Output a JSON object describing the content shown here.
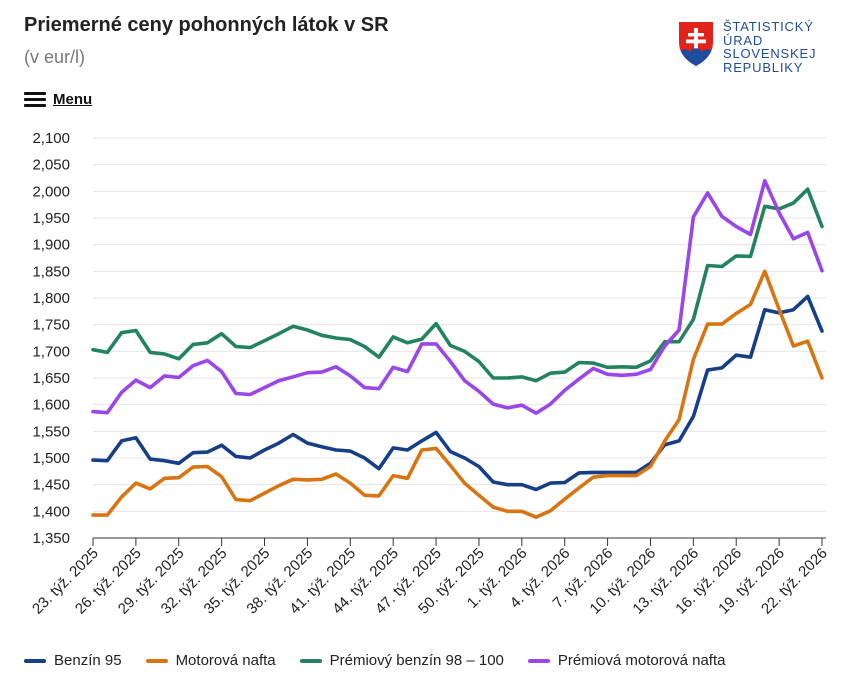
{
  "header": {
    "title": "Priemerné ceny pohonných látok v SR",
    "subtitle": "(v eur/l)",
    "menu_label": "Menu"
  },
  "logo": {
    "lines": [
      "ŠTATISTICKÝ",
      "ÚRAD",
      "SLOVENSKEJ",
      "REPUBLIKY"
    ],
    "colors": {
      "shield": "#e2231a",
      "cross": "#ffffff",
      "hills": "#1d4d9c",
      "text": "#1d4d9c"
    }
  },
  "chart_data": {
    "type": "line",
    "title": "Priemerné ceny pohonných látok v SR",
    "subtitle": "(v eur/l)",
    "xlabel": "",
    "ylabel": "",
    "ylim": [
      1.35,
      2.1
    ],
    "yticks": [
      1.35,
      1.4,
      1.45,
      1.5,
      1.55,
      1.6,
      1.65,
      1.7,
      1.75,
      1.8,
      1.85,
      1.9,
      1.95,
      2.0,
      2.05,
      2.1
    ],
    "ytick_labels": [
      "1,350",
      "1,400",
      "1,450",
      "1,500",
      "1,550",
      "1,600",
      "1,650",
      "1,700",
      "1,750",
      "1,800",
      "1,850",
      "1,900",
      "1,950",
      "2,000",
      "2,050",
      "2,100"
    ],
    "grid": true,
    "legend_position": "bottom",
    "x": [
      "23. týž. 2025",
      "24. týž. 2025",
      "25. týž. 2025",
      "26. týž. 2025",
      "27. týž. 2025",
      "28. týž. 2025",
      "29. týž. 2025",
      "30. týž. 2025",
      "31. týž. 2025",
      "32. týž. 2025",
      "33. týž. 2025",
      "34. týž. 2025",
      "35. týž. 2025",
      "36. týž. 2025",
      "37. týž. 2025",
      "38. týž. 2025",
      "39. týž. 2025",
      "40. týž. 2025",
      "41. týž. 2025",
      "42. týž. 2025",
      "43. týž. 2025",
      "44. týž. 2025",
      "45. týž. 2025",
      "46. týž. 2025",
      "47. týž. 2025",
      "48. týž. 2025",
      "49. týž. 2025",
      "50. týž. 2025",
      "51. týž. 2025",
      "52. týž. 2025",
      "1. týž. 2026",
      "2. týž. 2026",
      "3. týž. 2026",
      "4. týž. 2026",
      "5. týž. 2026",
      "6. týž. 2026",
      "7. týž. 2026",
      "8. týž. 2026",
      "9. týž. 2026",
      "10. týž. 2026",
      "11. týž. 2026",
      "12. týž. 2026",
      "13. týž. 2026",
      "14. týž. 2026",
      "15. týž. 2026",
      "16. týž. 2026",
      "17. týž. 2026",
      "18. týž. 2026",
      "19. týž. 2026",
      "20. týž. 2026",
      "21. týž. 2026",
      "22. týž. 2026"
    ],
    "tick_labels_shown": [
      "23. týž. 2025",
      "26. týž. 2025",
      "29. týž. 2025",
      "32. týž. 2025",
      "35. týž. 2025",
      "38. týž. 2025",
      "41. týž. 2025",
      "44. týž. 2025",
      "47. týž. 2025",
      "50. týž. 2025",
      "1. týž. 2026",
      "4. týž. 2026",
      "7. týž. 2026",
      "10. týž. 2026",
      "13. týž. 2026",
      "16. týž. 2026",
      "19. týž. 2026",
      "22. týž. 2026"
    ],
    "series": [
      {
        "name": "Benzín 95",
        "color": "#173f86",
        "values": [
          1.496,
          1.495,
          1.532,
          1.538,
          1.498,
          1.495,
          1.49,
          1.51,
          1.511,
          1.524,
          1.503,
          1.5,
          1.515,
          1.528,
          1.544,
          1.528,
          1.521,
          1.515,
          1.513,
          1.5,
          1.48,
          1.519,
          1.515,
          1.532,
          1.548,
          1.512,
          1.5,
          1.484,
          1.455,
          1.45,
          1.45,
          1.441,
          1.453,
          1.454,
          1.472,
          1.473,
          1.473,
          1.473,
          1.473,
          1.49,
          1.525,
          1.532,
          1.578,
          1.665,
          1.669,
          1.693,
          1.689,
          1.778,
          1.772,
          1.778,
          1.803,
          1.738
        ]
      },
      {
        "name": "Motorová nafta",
        "color": "#d97412",
        "values": [
          1.393,
          1.393,
          1.427,
          1.453,
          1.442,
          1.462,
          1.463,
          1.483,
          1.484,
          1.465,
          1.422,
          1.42,
          1.434,
          1.448,
          1.46,
          1.459,
          1.46,
          1.47,
          1.453,
          1.43,
          1.429,
          1.467,
          1.462,
          1.515,
          1.518,
          1.486,
          1.453,
          1.43,
          1.408,
          1.4,
          1.4,
          1.389,
          1.401,
          1.423,
          1.444,
          1.464,
          1.467,
          1.467,
          1.467,
          1.484,
          1.532,
          1.572,
          1.685,
          1.751,
          1.751,
          1.771,
          1.788,
          1.85,
          1.779,
          1.71,
          1.719,
          1.65
        ]
      },
      {
        "name": "Prémiový benzín 98 – 100",
        "color": "#23835e",
        "values": [
          1.703,
          1.698,
          1.735,
          1.739,
          1.698,
          1.695,
          1.686,
          1.713,
          1.716,
          1.733,
          1.709,
          1.707,
          1.72,
          1.733,
          1.747,
          1.74,
          1.73,
          1.725,
          1.722,
          1.709,
          1.689,
          1.727,
          1.716,
          1.723,
          1.752,
          1.711,
          1.7,
          1.681,
          1.65,
          1.65,
          1.652,
          1.645,
          1.659,
          1.661,
          1.679,
          1.678,
          1.67,
          1.671,
          1.67,
          1.682,
          1.718,
          1.718,
          1.76,
          1.861,
          1.859,
          1.879,
          1.878,
          1.972,
          1.967,
          1.978,
          2.004,
          1.934
        ]
      },
      {
        "name": "Prémiová motorová nafta",
        "color": "#9a46e8",
        "values": [
          1.587,
          1.585,
          1.623,
          1.646,
          1.632,
          1.654,
          1.651,
          1.673,
          1.683,
          1.662,
          1.621,
          1.619,
          1.632,
          1.645,
          1.652,
          1.66,
          1.661,
          1.671,
          1.654,
          1.632,
          1.63,
          1.67,
          1.662,
          1.714,
          1.714,
          1.681,
          1.645,
          1.625,
          1.601,
          1.594,
          1.599,
          1.584,
          1.601,
          1.627,
          1.648,
          1.668,
          1.657,
          1.655,
          1.657,
          1.666,
          1.71,
          1.74,
          1.952,
          1.997,
          1.953,
          1.934,
          1.919,
          2.02,
          1.96,
          1.911,
          1.923,
          1.851
        ]
      }
    ]
  }
}
